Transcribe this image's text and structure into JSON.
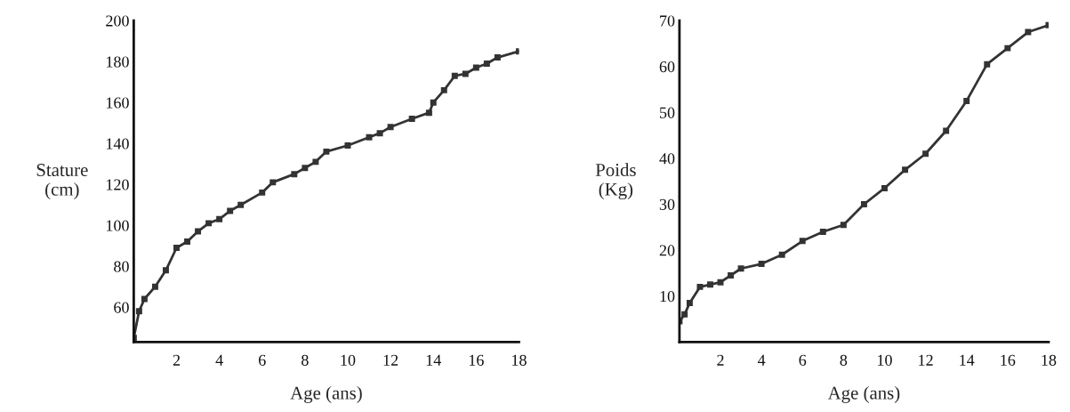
{
  "chart_data": [
    {
      "type": "line",
      "xlabel": "Age (ans)",
      "ylabel": "Stature\n(cm)",
      "xlim": [
        0,
        18
      ],
      "xticks": [
        2,
        4,
        6,
        8,
        10,
        12,
        14,
        16,
        18
      ],
      "ylim": [
        43,
        200
      ],
      "yticks": [
        60,
        80,
        100,
        120,
        140,
        160,
        180,
        200
      ],
      "marker": "square",
      "line_style": "solid",
      "grid": false,
      "series": [
        {
          "color": "#333333",
          "x": [
            0,
            0.25,
            0.5,
            1,
            1.5,
            2,
            2.5,
            3,
            3.5,
            4,
            4.5,
            5,
            6,
            6.5,
            7.5,
            8,
            8.5,
            9,
            10,
            11,
            11.5,
            12,
            13,
            13.8,
            14,
            14.5,
            15,
            15.5,
            16,
            16.5,
            17,
            18
          ],
          "values": [
            45,
            58,
            64,
            70,
            78,
            89,
            92,
            97,
            101,
            103,
            107,
            110,
            116,
            121,
            125,
            128,
            131,
            136,
            139,
            143,
            145,
            148,
            152,
            155,
            160,
            166,
            173,
            174,
            177,
            179,
            182,
            185
          ]
        }
      ]
    },
    {
      "type": "line",
      "xlabel": "Age (ans)",
      "ylabel": "Poids\n(Kg)",
      "xlim": [
        0,
        18
      ],
      "xticks": [
        2,
        4,
        6,
        8,
        10,
        12,
        14,
        16,
        18
      ],
      "ylim": [
        0,
        70
      ],
      "yticks": [
        10,
        20,
        30,
        40,
        50,
        60,
        70
      ],
      "marker": "square",
      "line_style": "solid",
      "grid": false,
      "series": [
        {
          "color": "#333333",
          "x": [
            0,
            0.25,
            0.5,
            1,
            1.5,
            2,
            2.5,
            3,
            4,
            5,
            6,
            7,
            8,
            9,
            10,
            11,
            12,
            13,
            14,
            15,
            16,
            17,
            18
          ],
          "values": [
            4.5,
            6,
            8.5,
            12,
            12.5,
            13,
            14.5,
            16,
            17,
            19,
            22,
            24,
            25.5,
            30,
            33.5,
            37.5,
            41,
            46,
            52.5,
            60.5,
            64,
            67.5,
            69
          ]
        }
      ]
    }
  ]
}
